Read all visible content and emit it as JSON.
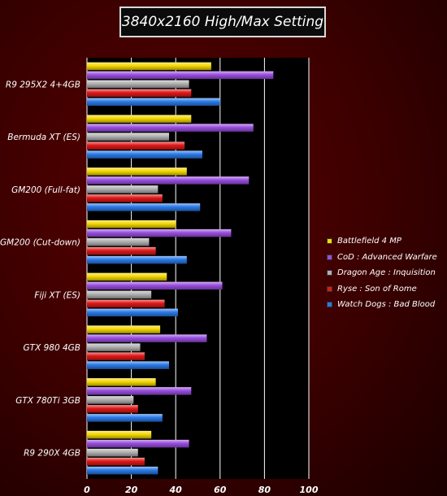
{
  "chart_data": {
    "type": "bar",
    "orientation": "horizontal",
    "title": "3840x2160 High/Max Setting",
    "categories": [
      "R9 295X2 4+4GB",
      "Bermuda XT (ES)",
      "GM200 (Full-fat)",
      "GM200 (Cut-down)",
      "Fiji XT (ES)",
      "GTX 980 4GB",
      "GTX 780Ti 3GB",
      "R9 290X 4GB"
    ],
    "series": [
      {
        "name": "Battlefield 4 MP",
        "color": "#f5d800",
        "values": [
          56,
          47,
          45,
          40,
          36,
          33,
          31,
          29
        ]
      },
      {
        "name": "CoD : Advanced Warfare",
        "color": "#9a4ee0",
        "values": [
          84,
          75,
          73,
          65,
          61,
          54,
          47,
          46
        ]
      },
      {
        "name": "Dragon Age : Inquisition",
        "color": "#b0b0b0",
        "values": [
          46,
          37,
          32,
          28,
          29,
          24,
          21,
          23
        ]
      },
      {
        "name": "Ryse : Son of Rome",
        "color": "#e01818",
        "values": [
          47,
          44,
          34,
          31,
          35,
          26,
          23,
          26
        ]
      },
      {
        "name": "Watch Dogs : Bad Blood",
        "color": "#2a7ae8",
        "values": [
          60,
          52,
          51,
          45,
          41,
          37,
          34,
          32
        ]
      }
    ],
    "xticks": [
      "0",
      "20",
      "40",
      "60",
      "80",
      "100"
    ],
    "xlim": [
      0,
      100
    ],
    "grid": true,
    "legend_position": "right"
  }
}
